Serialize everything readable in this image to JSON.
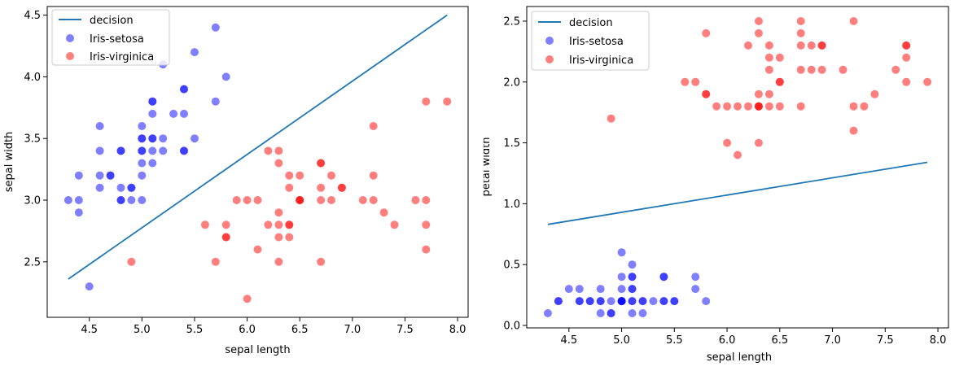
{
  "chart_data": [
    {
      "type": "scatter",
      "xlabel": "sepal length",
      "ylabel": "sepal width",
      "xlim": [
        4.1,
        8.1
      ],
      "ylim": [
        2.05,
        4.57
      ],
      "xticks": [
        "4.5",
        "5.0",
        "5.5",
        "6.0",
        "6.5",
        "7.0",
        "7.5",
        "8.0"
      ],
      "yticks": [
        "2.5",
        "3.0",
        "3.5",
        "4.0",
        "4.5"
      ],
      "grid": false,
      "legend_position": "upper-left",
      "legend": [
        "decision",
        "Iris-setosa",
        "Iris-virginica"
      ],
      "decision_line": {
        "name": "decision",
        "color": "#1f77b4",
        "x": [
          4.3,
          7.9
        ],
        "y": [
          2.36,
          4.5
        ]
      },
      "series": [
        {
          "name": "Iris-setosa",
          "color": "#0000ff",
          "points": [
            [
              4.3,
              3.0
            ],
            [
              4.4,
              3.0
            ],
            [
              4.4,
              3.2
            ],
            [
              4.4,
              2.9
            ],
            [
              4.5,
              2.3
            ],
            [
              4.6,
              3.6
            ],
            [
              4.6,
              3.4
            ],
            [
              4.6,
              3.2
            ],
            [
              4.6,
              3.1
            ],
            [
              4.7,
              3.2
            ],
            [
              4.7,
              3.2
            ],
            [
              4.8,
              3.4
            ],
            [
              4.8,
              3.4
            ],
            [
              4.8,
              3.1
            ],
            [
              4.8,
              3.0
            ],
            [
              4.8,
              3.0
            ],
            [
              4.9,
              3.1
            ],
            [
              4.9,
              3.1
            ],
            [
              4.9,
              3.0
            ],
            [
              5.0,
              3.6
            ],
            [
              5.0,
              3.5
            ],
            [
              5.0,
              3.5
            ],
            [
              5.0,
              3.4
            ],
            [
              5.0,
              3.4
            ],
            [
              5.0,
              3.3
            ],
            [
              5.0,
              3.2
            ],
            [
              5.0,
              3.0
            ],
            [
              5.1,
              3.8
            ],
            [
              5.1,
              3.8
            ],
            [
              5.1,
              3.7
            ],
            [
              5.1,
              3.5
            ],
            [
              5.1,
              3.5
            ],
            [
              5.1,
              3.4
            ],
            [
              5.1,
              3.3
            ],
            [
              5.2,
              4.1
            ],
            [
              5.2,
              3.5
            ],
            [
              5.2,
              3.4
            ],
            [
              5.3,
              3.7
            ],
            [
              5.4,
              3.9
            ],
            [
              5.4,
              3.9
            ],
            [
              5.4,
              3.7
            ],
            [
              5.4,
              3.4
            ],
            [
              5.4,
              3.4
            ],
            [
              5.5,
              4.2
            ],
            [
              5.5,
              3.5
            ],
            [
              5.7,
              4.4
            ],
            [
              5.7,
              3.8
            ],
            [
              5.8,
              4.0
            ]
          ]
        },
        {
          "name": "Iris-virginica",
          "color": "#ff0000",
          "points": [
            [
              4.9,
              2.5
            ],
            [
              5.6,
              2.8
            ],
            [
              5.7,
              2.5
            ],
            [
              5.8,
              2.8
            ],
            [
              5.8,
              2.7
            ],
            [
              5.8,
              2.7
            ],
            [
              5.9,
              3.0
            ],
            [
              6.0,
              3.0
            ],
            [
              6.0,
              2.2
            ],
            [
              6.1,
              3.0
            ],
            [
              6.1,
              2.6
            ],
            [
              6.2,
              3.4
            ],
            [
              6.2,
              2.8
            ],
            [
              6.3,
              3.4
            ],
            [
              6.3,
              3.3
            ],
            [
              6.3,
              2.9
            ],
            [
              6.3,
              2.8
            ],
            [
              6.3,
              2.7
            ],
            [
              6.3,
              2.5
            ],
            [
              6.4,
              3.2
            ],
            [
              6.4,
              3.1
            ],
            [
              6.4,
              2.8
            ],
            [
              6.4,
              2.8
            ],
            [
              6.4,
              2.7
            ],
            [
              6.5,
              3.2
            ],
            [
              6.5,
              3.0
            ],
            [
              6.5,
              3.0
            ],
            [
              6.5,
              3.0
            ],
            [
              6.7,
              3.3
            ],
            [
              6.7,
              3.3
            ],
            [
              6.7,
              3.1
            ],
            [
              6.7,
              3.0
            ],
            [
              6.7,
              2.5
            ],
            [
              6.8,
              3.2
            ],
            [
              6.8,
              3.0
            ],
            [
              6.9,
              3.1
            ],
            [
              6.9,
              3.1
            ],
            [
              7.1,
              3.0
            ],
            [
              7.2,
              3.6
            ],
            [
              7.2,
              3.2
            ],
            [
              7.2,
              3.0
            ],
            [
              7.3,
              2.9
            ],
            [
              7.4,
              2.8
            ],
            [
              7.6,
              3.0
            ],
            [
              7.7,
              3.8
            ],
            [
              7.7,
              3.0
            ],
            [
              7.7,
              2.8
            ],
            [
              7.7,
              2.6
            ],
            [
              7.9,
              3.8
            ]
          ]
        }
      ]
    },
    {
      "type": "scatter",
      "xlabel": "sepal length",
      "ylabel": "petal width",
      "xlim": [
        4.1,
        8.1
      ],
      "ylim": [
        -0.02,
        2.62
      ],
      "xticks": [
        "4.5",
        "5.0",
        "5.5",
        "6.0",
        "6.5",
        "7.0",
        "7.5",
        "8.0"
      ],
      "yticks": [
        "0.0",
        "0.5",
        "1.0",
        "1.5",
        "2.0",
        "2.5"
      ],
      "grid": false,
      "legend_position": "upper-left",
      "legend": [
        "decision",
        "Iris-setosa",
        "Iris-virginica"
      ],
      "decision_line": {
        "name": "decision",
        "color": "#1f77b4",
        "x": [
          4.3,
          7.9
        ],
        "y": [
          0.83,
          1.34
        ]
      },
      "series": [
        {
          "name": "Iris-setosa",
          "color": "#0000ff",
          "points": [
            [
              4.3,
              0.1
            ],
            [
              4.4,
              0.2
            ],
            [
              4.4,
              0.2
            ],
            [
              4.5,
              0.3
            ],
            [
              4.6,
              0.3
            ],
            [
              4.6,
              0.2
            ],
            [
              4.6,
              0.2
            ],
            [
              4.7,
              0.2
            ],
            [
              4.7,
              0.2
            ],
            [
              4.8,
              0.3
            ],
            [
              4.8,
              0.2
            ],
            [
              4.8,
              0.2
            ],
            [
              4.8,
              0.1
            ],
            [
              4.9,
              0.2
            ],
            [
              4.9,
              0.1
            ],
            [
              4.9,
              0.1
            ],
            [
              5.0,
              0.6
            ],
            [
              5.0,
              0.4
            ],
            [
              5.0,
              0.3
            ],
            [
              5.0,
              0.2
            ],
            [
              5.0,
              0.2
            ],
            [
              5.0,
              0.2
            ],
            [
              5.0,
              0.2
            ],
            [
              5.1,
              0.5
            ],
            [
              5.1,
              0.4
            ],
            [
              5.1,
              0.4
            ],
            [
              5.1,
              0.3
            ],
            [
              5.1,
              0.3
            ],
            [
              5.1,
              0.2
            ],
            [
              5.1,
              0.2
            ],
            [
              5.1,
              0.1
            ],
            [
              5.2,
              0.2
            ],
            [
              5.2,
              0.2
            ],
            [
              5.2,
              0.1
            ],
            [
              5.3,
              0.2
            ],
            [
              5.4,
              0.4
            ],
            [
              5.4,
              0.4
            ],
            [
              5.4,
              0.2
            ],
            [
              5.4,
              0.2
            ],
            [
              5.5,
              0.2
            ],
            [
              5.5,
              0.2
            ],
            [
              5.7,
              0.4
            ],
            [
              5.7,
              0.3
            ],
            [
              5.8,
              0.2
            ]
          ]
        },
        {
          "name": "Iris-virginica",
          "color": "#ff0000",
          "points": [
            [
              4.9,
              1.7
            ],
            [
              5.6,
              2.0
            ],
            [
              5.7,
              2.0
            ],
            [
              5.8,
              2.4
            ],
            [
              5.8,
              1.9
            ],
            [
              5.8,
              1.9
            ],
            [
              5.9,
              1.8
            ],
            [
              6.0,
              1.8
            ],
            [
              6.0,
              1.5
            ],
            [
              6.1,
              1.8
            ],
            [
              6.1,
              1.4
            ],
            [
              6.2,
              2.3
            ],
            [
              6.2,
              1.8
            ],
            [
              6.3,
              2.5
            ],
            [
              6.3,
              2.4
            ],
            [
              6.3,
              1.9
            ],
            [
              6.3,
              1.8
            ],
            [
              6.3,
              1.8
            ],
            [
              6.3,
              1.8
            ],
            [
              6.3,
              1.5
            ],
            [
              6.4,
              2.3
            ],
            [
              6.4,
              2.2
            ],
            [
              6.4,
              2.1
            ],
            [
              6.4,
              1.9
            ],
            [
              6.4,
              1.8
            ],
            [
              6.5,
              2.2
            ],
            [
              6.5,
              2.0
            ],
            [
              6.5,
              2.0
            ],
            [
              6.5,
              1.8
            ],
            [
              6.7,
              2.5
            ],
            [
              6.7,
              2.4
            ],
            [
              6.7,
              2.3
            ],
            [
              6.7,
              2.1
            ],
            [
              6.7,
              1.8
            ],
            [
              6.8,
              2.3
            ],
            [
              6.8,
              2.1
            ],
            [
              6.9,
              2.3
            ],
            [
              6.9,
              2.3
            ],
            [
              6.9,
              2.1
            ],
            [
              7.1,
              2.1
            ],
            [
              7.2,
              2.5
            ],
            [
              7.2,
              1.8
            ],
            [
              7.2,
              1.6
            ],
            [
              7.3,
              1.8
            ],
            [
              7.4,
              1.9
            ],
            [
              7.6,
              2.1
            ],
            [
              7.7,
              2.3
            ],
            [
              7.7,
              2.3
            ],
            [
              7.7,
              2.2
            ],
            [
              7.7,
              2.0
            ],
            [
              7.9,
              2.0
            ]
          ]
        }
      ]
    }
  ]
}
